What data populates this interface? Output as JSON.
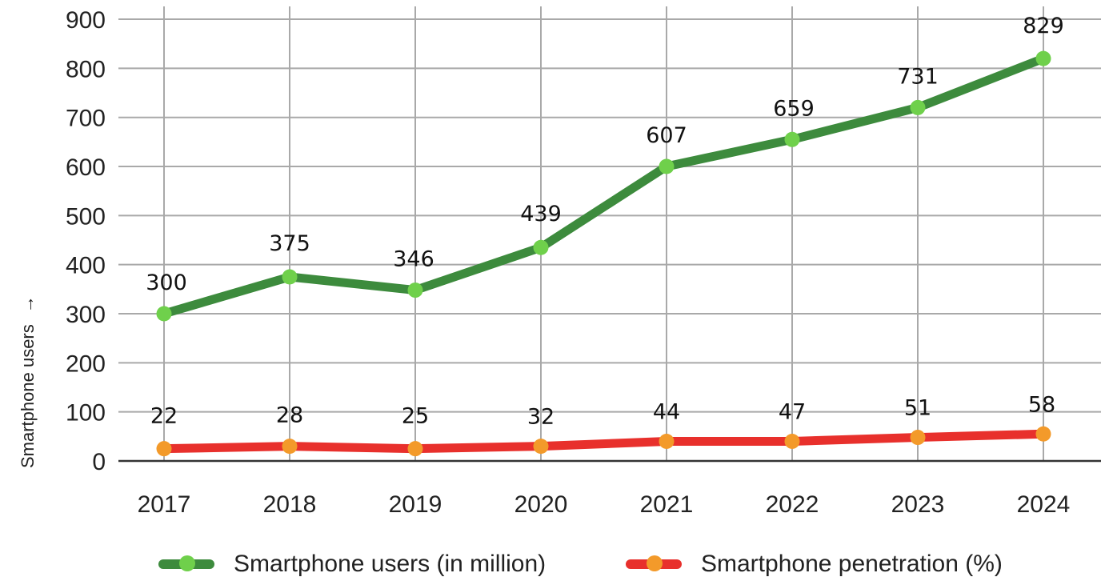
{
  "chart_data": {
    "type": "line",
    "x": [
      "2017",
      "2018",
      "2019",
      "2020",
      "2021",
      "2022",
      "2023",
      "2024"
    ],
    "ylabel": "Smartphone users",
    "ylabel_arrow": "→",
    "ylim": [
      0,
      900
    ],
    "yticks": [
      "0",
      "100",
      "200",
      "300",
      "400",
      "500",
      "600",
      "700",
      "800",
      "900"
    ],
    "grid": true,
    "legend_position": "bottom",
    "series": [
      {
        "name": "Smartphone users (in million)",
        "values": [
          300,
          375,
          346,
          439,
          607,
          659,
          731,
          829
        ],
        "plotted": [
          300,
          375,
          348,
          435,
          600,
          655,
          720,
          820
        ],
        "line_color": "#3d8b3d",
        "marker_color": "#6fd04b"
      },
      {
        "name": "Smartphone penetration (%)",
        "values": [
          22,
          28,
          25,
          32,
          44,
          47,
          51,
          58
        ],
        "plotted": [
          25,
          30,
          25,
          30,
          40,
          40,
          48,
          55
        ],
        "line_color": "#e8302c",
        "marker_color": "#f39a2a"
      }
    ]
  }
}
